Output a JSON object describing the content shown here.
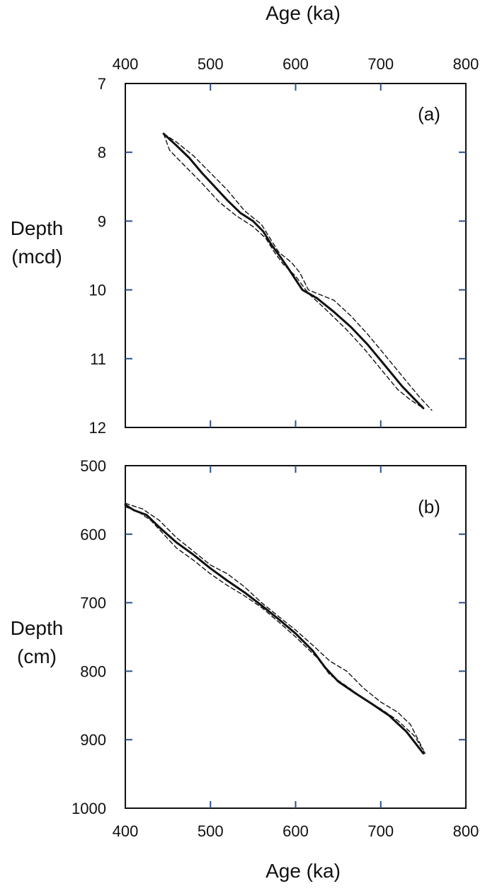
{
  "chart_data": [
    {
      "type": "line",
      "panel_label": "(a)",
      "xlabel": "Age (ka)",
      "ylabel_lines": [
        "Depth",
        "(mcd)"
      ],
      "xlim": [
        400,
        800
      ],
      "ylim": [
        7,
        12
      ],
      "y_inverted": true,
      "x_axis_position": "top",
      "x_ticks": [
        400,
        500,
        600,
        700,
        800
      ],
      "y_ticks": [
        7,
        8,
        9,
        10,
        11,
        12
      ],
      "grid": false,
      "series": [
        {
          "style": "solid",
          "x": [
            445,
            460,
            475,
            490,
            505,
            520,
            535,
            550,
            562,
            572,
            582,
            592,
            600,
            608,
            625,
            645,
            665,
            685,
            705,
            725,
            750
          ],
          "y": [
            7.73,
            7.9,
            8.08,
            8.3,
            8.5,
            8.7,
            8.88,
            9.0,
            9.15,
            9.35,
            9.52,
            9.7,
            9.85,
            10.0,
            10.12,
            10.32,
            10.54,
            10.8,
            11.1,
            11.4,
            11.72
          ]
        },
        {
          "style": "dashed",
          "x": [
            445,
            460,
            480,
            500,
            520,
            540,
            560,
            570,
            580,
            595,
            605,
            615,
            625,
            645,
            665,
            685,
            705,
            725,
            745,
            760
          ],
          "y": [
            7.73,
            7.85,
            8.05,
            8.3,
            8.55,
            8.85,
            9.05,
            9.25,
            9.45,
            9.6,
            9.75,
            10.0,
            10.05,
            10.15,
            10.38,
            10.65,
            10.95,
            11.25,
            11.55,
            11.75
          ]
        },
        {
          "style": "dashed",
          "x": [
            445,
            452,
            470,
            490,
            510,
            530,
            550,
            565,
            575,
            585,
            600,
            615,
            635,
            660,
            680,
            700,
            720,
            735,
            750
          ],
          "y": [
            7.73,
            7.97,
            8.2,
            8.45,
            8.72,
            8.92,
            9.08,
            9.25,
            9.45,
            9.62,
            9.8,
            10.05,
            10.28,
            10.58,
            10.85,
            11.15,
            11.45,
            11.6,
            11.72
          ]
        }
      ]
    },
    {
      "type": "line",
      "panel_label": "(b)",
      "xlabel": "Age (ka)",
      "ylabel_lines": [
        "Depth",
        "(cm)"
      ],
      "xlim": [
        400,
        800
      ],
      "ylim": [
        500,
        1000
      ],
      "y_inverted": true,
      "x_axis_position": "bottom",
      "x_ticks": [
        400,
        500,
        600,
        700,
        800
      ],
      "y_ticks": [
        500,
        600,
        700,
        800,
        900,
        1000
      ],
      "grid": false,
      "series": [
        {
          "style": "solid",
          "x": [
            400,
            410,
            425,
            440,
            460,
            480,
            500,
            520,
            540,
            560,
            580,
            600,
            620,
            635,
            650,
            670,
            690,
            710,
            730,
            750
          ],
          "y": [
            557,
            565,
            572,
            590,
            612,
            630,
            650,
            668,
            685,
            704,
            724,
            745,
            770,
            795,
            815,
            832,
            848,
            865,
            888,
            920
          ]
        },
        {
          "style": "dashed",
          "x": [
            400,
            420,
            440,
            460,
            480,
            500,
            520,
            540,
            560,
            580,
            600,
            620,
            640,
            660,
            680,
            700,
            720,
            735,
            750
          ],
          "y": [
            555,
            563,
            580,
            605,
            625,
            645,
            658,
            677,
            700,
            720,
            740,
            762,
            785,
            800,
            825,
            845,
            860,
            878,
            915
          ]
        },
        {
          "style": "dashed",
          "x": [
            400,
            415,
            430,
            445,
            460,
            480,
            500,
            520,
            540,
            560,
            580,
            600,
            625,
            640,
            660,
            680,
            700,
            720,
            740,
            752
          ],
          "y": [
            560,
            567,
            580,
            600,
            620,
            638,
            658,
            675,
            690,
            707,
            728,
            750,
            780,
            805,
            822,
            840,
            855,
            872,
            895,
            920
          ]
        }
      ]
    }
  ]
}
